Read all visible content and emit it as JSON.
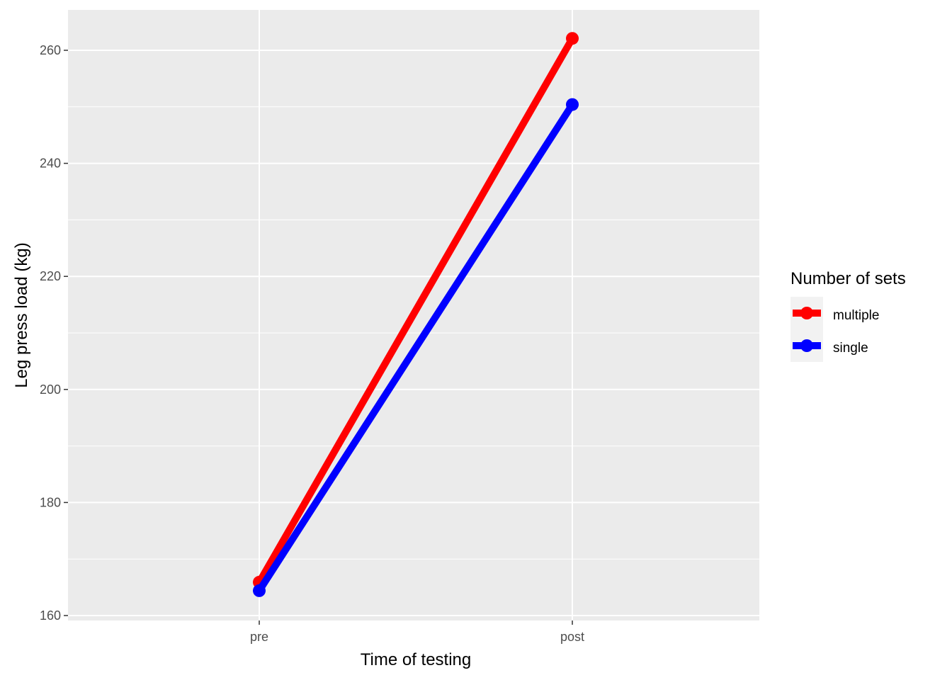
{
  "chart_data": {
    "type": "line",
    "categories": [
      "pre",
      "post"
    ],
    "xlabel": "Time of testing",
    "ylabel": "Leg press load (kg)",
    "ylim": [
      160,
      265
    ],
    "yticks": [
      160,
      180,
      200,
      220,
      240,
      260
    ],
    "grid": true,
    "legend": {
      "title": "Number of sets",
      "position": "right"
    },
    "series": [
      {
        "name": "multiple",
        "color": "#ff0000",
        "values": [
          165.9,
          262.1
        ]
      },
      {
        "name": "single",
        "color": "#0000ff",
        "values": [
          164.4,
          250.4
        ]
      }
    ]
  }
}
